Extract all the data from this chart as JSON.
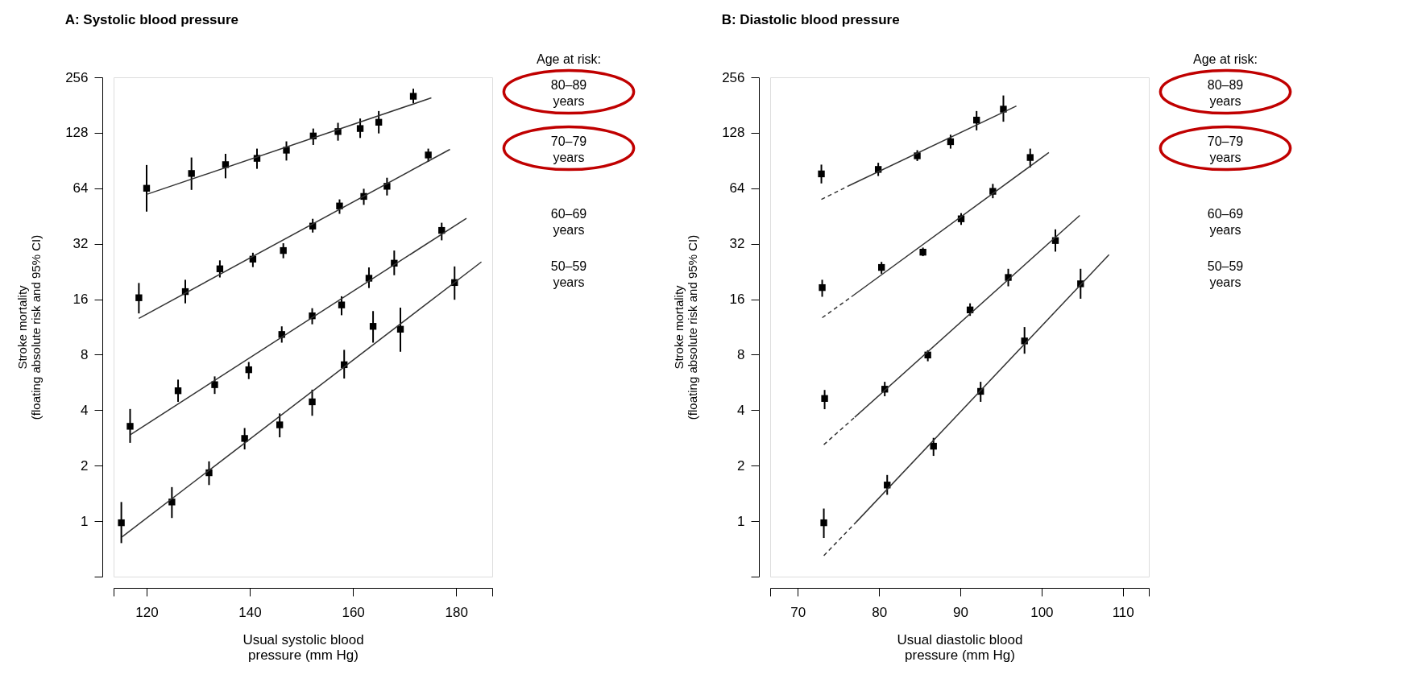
{
  "chart_data": [
    {
      "type": "scatter",
      "title": "A: Systolic blood pressure",
      "xlabel": "Usual systolic blood\npressure (mm Hg)",
      "ylabel": "Stroke mortality\n(floating absolute risk and 95% CI)",
      "legend_title": "Age at risk:",
      "legend": "right",
      "marker": "square",
      "log": "y",
      "xlim": [
        113.6,
        187
      ],
      "xticks": [
        {
          "value": 113.6,
          "label": null
        },
        120,
        140,
        160,
        180,
        {
          "value": 187,
          "label": null
        }
      ],
      "ylim": [
        0.5,
        256
      ],
      "yticks": [
        {
          "value": 0.5,
          "label": null
        },
        1,
        2,
        4,
        8,
        16,
        32,
        64,
        128,
        256
      ],
      "series": [
        {
          "name": "80–89 years",
          "color": "#000000",
          "x": [
            120.0,
            128.7,
            135.3,
            141.4,
            147.1,
            152.3,
            157.1,
            161.4,
            165.0,
            171.7
          ],
          "values": [
            64,
            77,
            86,
            93,
            103,
            123,
            130,
            135,
            146,
            202
          ],
          "errors": [
            [
              47.8,
              85.6
            ],
            [
              62.7,
              94
            ],
            [
              72.5,
              98.4
            ],
            [
              81.6,
              105
            ],
            [
              90.5,
              115
            ],
            [
              110,
              135
            ],
            [
              116,
              145
            ],
            [
              120,
              153
            ],
            [
              127,
              168
            ],
            [
              185,
              222
            ]
          ]
        },
        {
          "type": "line",
          "color": "#333333",
          "line_style": "solid",
          "marker": "none",
          "x": [
            120.0,
            175.2
          ],
          "values": [
            59.3,
            198
          ]
        },
        {
          "name": "70–79 years",
          "color": "#000000",
          "x": [
            118.5,
            127.5,
            134.2,
            140.6,
            146.5,
            152.2,
            157.4,
            162.1,
            166.6,
            174.6
          ],
          "values": [
            16.3,
            17.6,
            23.4,
            26.4,
            29.4,
            39.9,
            51.3,
            57.8,
            65.6,
            97
          ],
          "errors": [
            [
              13.4,
              19.6
            ],
            [
              15.2,
              20.4
            ],
            [
              21,
              26
            ],
            [
              23.9,
              28.6
            ],
            [
              26.7,
              32.2
            ],
            [
              36.8,
              43.7
            ],
            [
              46.5,
              55.7
            ],
            [
              52,
              63.6
            ],
            [
              58.5,
              73
            ],
            [
              89,
              105
            ]
          ]
        },
        {
          "type": "line",
          "color": "#333333",
          "line_style": "solid",
          "marker": "none",
          "x": [
            118.5,
            178.8
          ],
          "values": [
            12.6,
            104
          ]
        },
        {
          "name": "60–69 years",
          "color": "#000000",
          "x": [
            116.8,
            126.1,
            133.2,
            139.8,
            146.2,
            152.1,
            157.8,
            163.1,
            168.0,
            177.2
          ],
          "values": [
            3.27,
            5.1,
            5.5,
            6.63,
            10.3,
            13.0,
            14.9,
            20.8,
            25.1,
            37.8
          ],
          "errors": [
            [
              2.66,
              4.06
            ],
            [
              4.44,
              5.86
            ],
            [
              4.9,
              6.1
            ],
            [
              5.9,
              7.3
            ],
            [
              9.3,
              11.4
            ],
            [
              11.7,
              14.3
            ],
            [
              13.1,
              16.6
            ],
            [
              18.4,
              23.8
            ],
            [
              21.6,
              29.4
            ],
            [
              33.4,
              41.6
            ]
          ]
        },
        {
          "type": "line",
          "color": "#333333",
          "line_style": "solid",
          "marker": "none",
          "x": [
            116.9,
            182.0
          ],
          "values": [
            2.95,
            44
          ]
        },
        {
          "name": "50–59 years",
          "color": "#000000",
          "x": [
            115.1,
            124.9,
            132.1,
            139.0,
            145.8,
            152.1,
            158.3,
            163.9,
            169.2,
            179.7
          ],
          "values": [
            0.98,
            1.27,
            1.83,
            2.81,
            3.33,
            4.44,
            7.06,
            11.4,
            11.0,
            19.7
          ],
          "errors": [
            [
              0.76,
              1.27
            ],
            [
              1.04,
              1.53
            ],
            [
              1.57,
              2.11
            ],
            [
              2.45,
              3.2
            ],
            [
              2.85,
              3.84
            ],
            [
              3.73,
              5.17
            ],
            [
              5.94,
              8.5
            ],
            [
              9.3,
              13.8
            ],
            [
              8.3,
              14.4
            ],
            [
              15.9,
              24.1
            ]
          ]
        },
        {
          "type": "line",
          "color": "#333333",
          "line_style": "solid",
          "marker": "none",
          "x": [
            115.2,
            184.9
          ],
          "values": [
            0.82,
            25.5
          ]
        }
      ]
    },
    {
      "type": "scatter",
      "title": "B: Diastolic blood pressure",
      "xlabel": "Usual diastolic blood\npressure (mm Hg)",
      "ylabel": "Stroke mortality\n(floating absolute risk and 95% CI)",
      "legend_title": "Age at risk:",
      "legend": "right",
      "marker": "square",
      "log": "y",
      "xlim": [
        66.6,
        113.2
      ],
      "xticks": [
        {
          "value": 66.6,
          "label": null
        },
        70,
        80,
        90,
        100,
        110,
        {
          "value": 113.2,
          "label": null
        }
      ],
      "ylim": [
        0.5,
        256
      ],
      "yticks": [
        {
          "value": 0.5,
          "label": null
        },
        1,
        2,
        4,
        8,
        16,
        32,
        64,
        128,
        256
      ],
      "series": [
        {
          "name": "80–89 years",
          "color": "#000000",
          "x": [
            72.9,
            79.9,
            84.7,
            88.8,
            92.0,
            95.3
          ],
          "values": [
            76.6,
            81,
            96,
            114.5,
            150,
            172
          ],
          "errors": [
            [
              68,
              86
            ],
            [
              74.6,
              88
            ],
            [
              90,
              103
            ],
            [
              105,
              125
            ],
            [
              132,
              168
            ],
            [
              147,
              204
            ]
          ]
        },
        {
          "type": "line",
          "color": "#333333",
          "line_style": "dashed",
          "marker": "none",
          "x": [
            72.9,
            76.2
          ],
          "values": [
            55.7,
            65.8
          ]
        },
        {
          "type": "line",
          "color": "#333333",
          "line_style": "solid",
          "marker": "none",
          "x": [
            76.2,
            96.9
          ],
          "values": [
            65.8,
            179
          ]
        },
        {
          "name": "70–79 years",
          "color": "#000000",
          "x": [
            73.0,
            80.3,
            85.4,
            90.1,
            94.0,
            98.6
          ],
          "values": [
            18.5,
            23.8,
            28.8,
            43.7,
            61.6,
            94
          ],
          "errors": [
            [
              16.5,
              20.4
            ],
            [
              22,
              25.5
            ],
            [
              27.4,
              30.5
            ],
            [
              40.5,
              46.9
            ],
            [
              56.5,
              67.6
            ],
            [
              83,
              105
            ]
          ]
        },
        {
          "type": "line",
          "color": "#333333",
          "line_style": "dashed",
          "marker": "none",
          "x": [
            73.0,
            76.6
          ],
          "values": [
            12.7,
            16.5
          ]
        },
        {
          "type": "line",
          "color": "#333333",
          "line_style": "solid",
          "marker": "none",
          "x": [
            76.6,
            100.9
          ],
          "values": [
            16.5,
            100
          ]
        },
        {
          "name": "60–69 years",
          "color": "#000000",
          "x": [
            73.3,
            80.7,
            86.0,
            91.2,
            95.9,
            101.7
          ],
          "values": [
            4.63,
            5.2,
            7.97,
            14.0,
            21,
            33.3
          ],
          "errors": [
            [
              4.05,
              5.15
            ],
            [
              4.76,
              5.7
            ],
            [
              7.37,
              8.46
            ],
            [
              13,
              15.2
            ],
            [
              18.8,
              23.4
            ],
            [
              29,
              38.3
            ]
          ]
        },
        {
          "type": "line",
          "color": "#333333",
          "line_style": "dashed",
          "marker": "none",
          "x": [
            73.2,
            77.0
          ],
          "values": [
            2.6,
            3.66
          ]
        },
        {
          "type": "line",
          "color": "#333333",
          "line_style": "solid",
          "marker": "none",
          "x": [
            77.0,
            104.7
          ],
          "values": [
            3.66,
            45.6
          ]
        },
        {
          "name": "50–59 years",
          "color": "#000000",
          "x": [
            73.2,
            81.0,
            86.7,
            92.5,
            97.9,
            104.8
          ],
          "values": [
            0.98,
            1.57,
            2.55,
            5.06,
            9.5,
            19.4
          ],
          "errors": [
            [
              0.81,
              1.17
            ],
            [
              1.39,
              1.78
            ],
            [
              2.26,
              2.83
            ],
            [
              4.44,
              5.7
            ],
            [
              8.1,
              11.3
            ],
            [
              16.1,
              23.4
            ]
          ]
        },
        {
          "type": "line",
          "color": "#333333",
          "line_style": "dashed",
          "marker": "none",
          "x": [
            73.2,
            77.2
          ],
          "values": [
            0.65,
            0.99
          ]
        },
        {
          "type": "line",
          "color": "#333333",
          "line_style": "solid",
          "marker": "none",
          "x": [
            77.2,
            108.3
          ],
          "values": [
            0.99,
            27.9
          ]
        }
      ]
    }
  ]
}
